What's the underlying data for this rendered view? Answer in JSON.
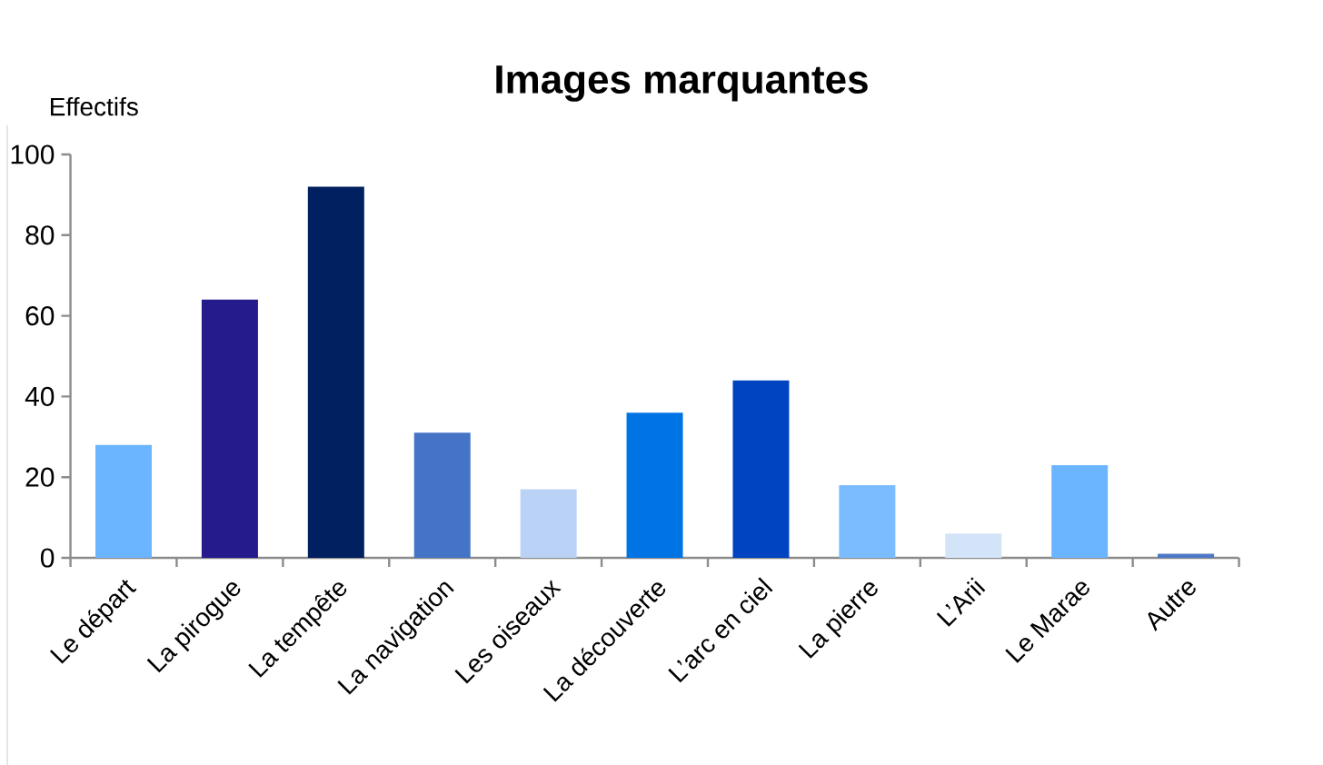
{
  "chart_data": {
    "type": "bar",
    "title": "Images marquantes",
    "ylabel": "Effectifs",
    "categories": [
      "Le départ",
      "La pirogue",
      "La tempête",
      "La navigation",
      "Les oiseaux",
      "La découverte",
      "L’arc en ciel",
      "La pierre",
      "L’Arii",
      "Le Marae",
      "Autre"
    ],
    "values": [
      28,
      64,
      92,
      31,
      17,
      36,
      44,
      18,
      6,
      23,
      1
    ],
    "colors": [
      "#6bb5ff",
      "#261b8c",
      "#012060",
      "#4573c6",
      "#b9d2f5",
      "#0074e4",
      "#0044c2",
      "#7abcff",
      "#d3e4f8",
      "#6bb5ff",
      "#4d78c8"
    ],
    "ylim": [
      0,
      100
    ],
    "yticks": [
      0,
      20,
      40,
      60,
      80,
      100
    ]
  }
}
